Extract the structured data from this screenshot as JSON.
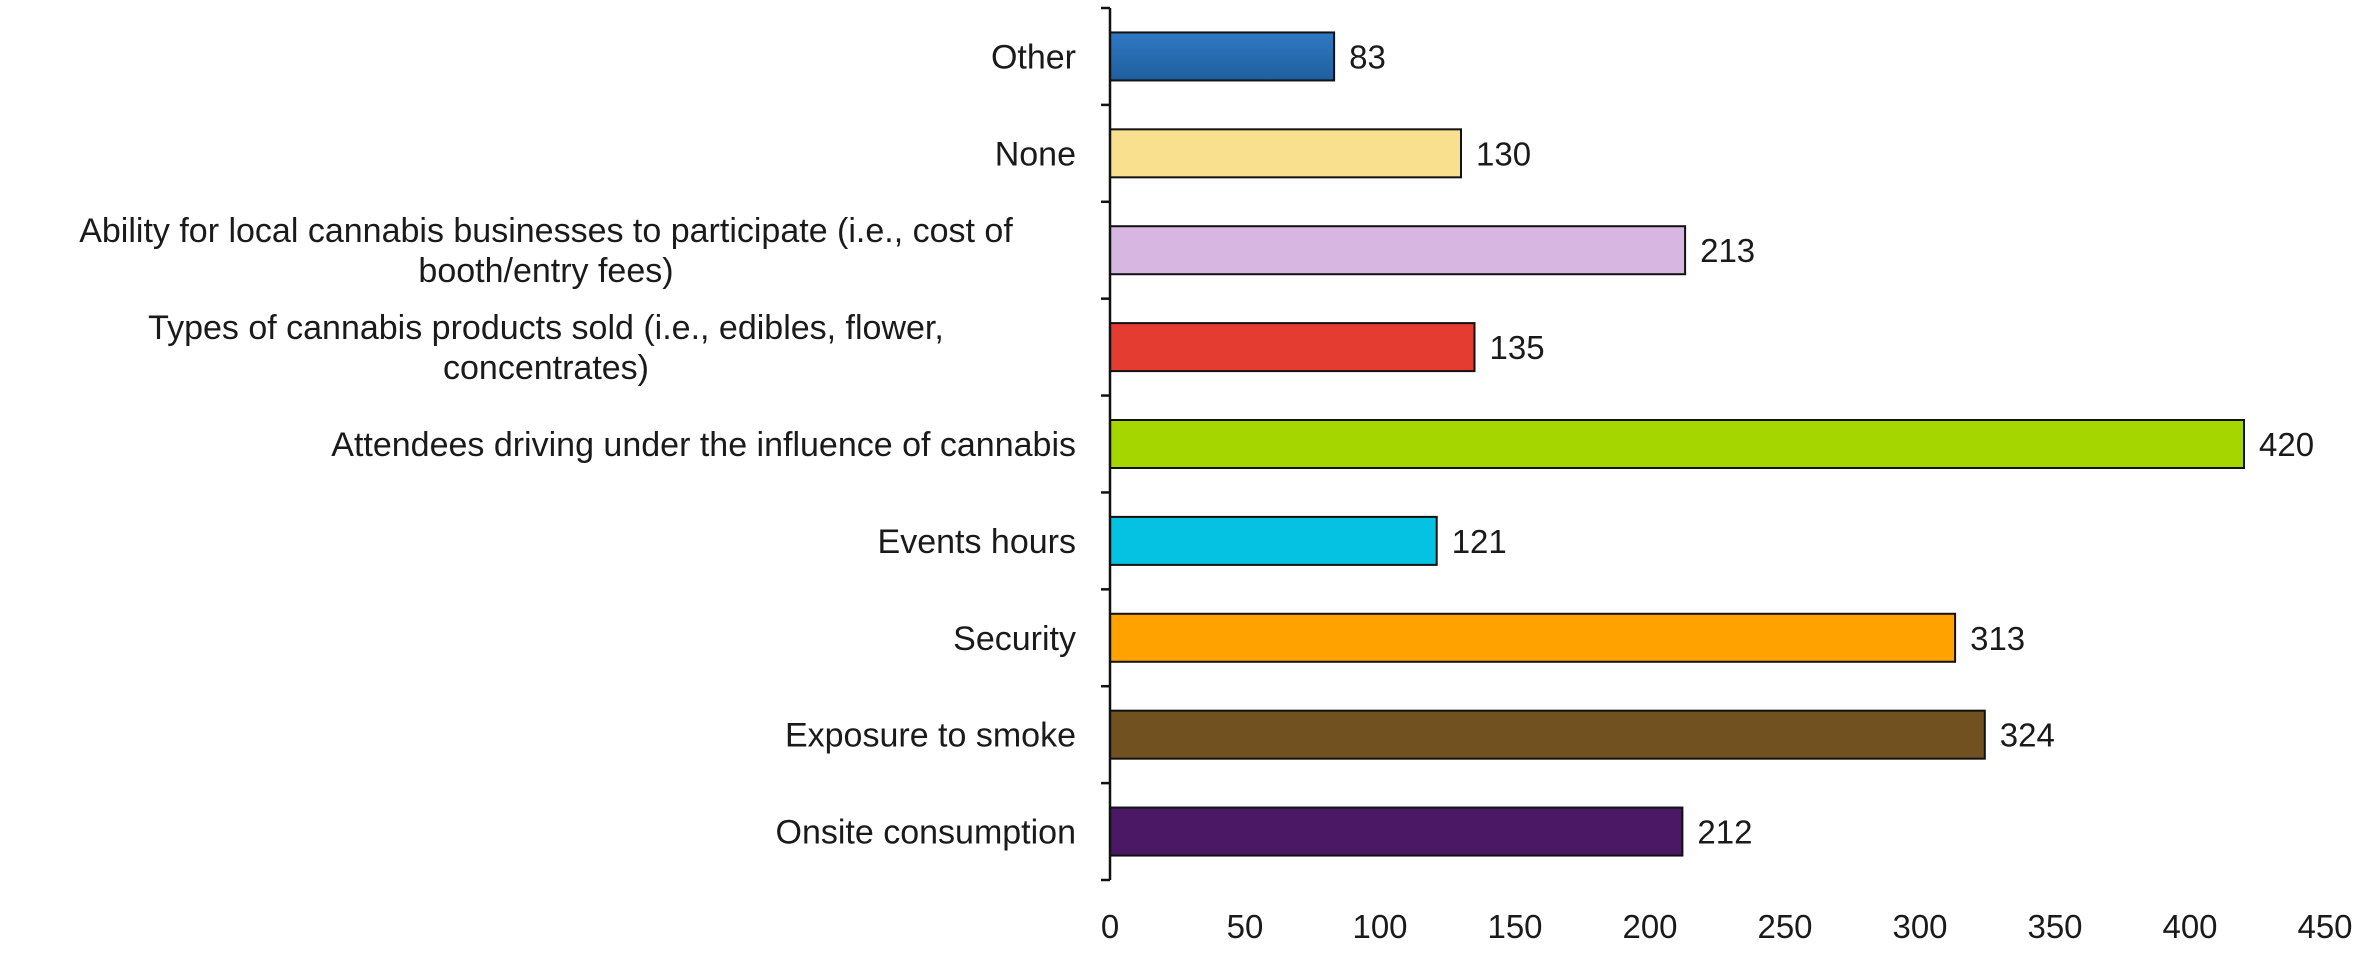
{
  "chart_data": {
    "type": "bar",
    "orientation": "horizontal",
    "categories": [
      "Other",
      "None",
      "Ability for local cannabis businesses to participate (i.e., cost of booth/entry fees)",
      "Types of cannabis products sold (i.e., edibles, flower, concentrates)",
      "Attendees driving under the influence of cannabis",
      "Events hours",
      "Security",
      "Exposure to smoke",
      "Onsite consumption"
    ],
    "category_lines": [
      [
        "Other"
      ],
      [
        "None"
      ],
      [
        "Ability for local cannabis businesses to participate (i.e., cost of",
        "booth/entry fees)"
      ],
      [
        "Types of cannabis products sold (i.e., edibles, flower,",
        "concentrates)"
      ],
      [
        "Attendees driving under the influence of cannabis"
      ],
      [
        "Events hours"
      ],
      [
        "Security"
      ],
      [
        "Exposure to smoke"
      ],
      [
        "Onsite consumption"
      ]
    ],
    "values": [
      83,
      130,
      213,
      135,
      420,
      121,
      313,
      324,
      212
    ],
    "value_labels": [
      "83",
      "130",
      "213",
      "135",
      "420",
      "121",
      "313",
      "324",
      "212"
    ],
    "colors": [
      "#1f5f9e",
      "#f9e08f",
      "#d8b6e2",
      "#e53c32",
      "#a6d600",
      "#06c2e2",
      "#ffa200",
      "#725120",
      "#4b1866"
    ],
    "xlim": [
      0,
      450
    ],
    "x_ticks": [
      "0",
      "50",
      "100",
      "150",
      "200",
      "250",
      "300",
      "350",
      "400",
      "450"
    ],
    "title": "",
    "xlabel": "",
    "ylabel": "",
    "grid": false,
    "legend": "none"
  }
}
